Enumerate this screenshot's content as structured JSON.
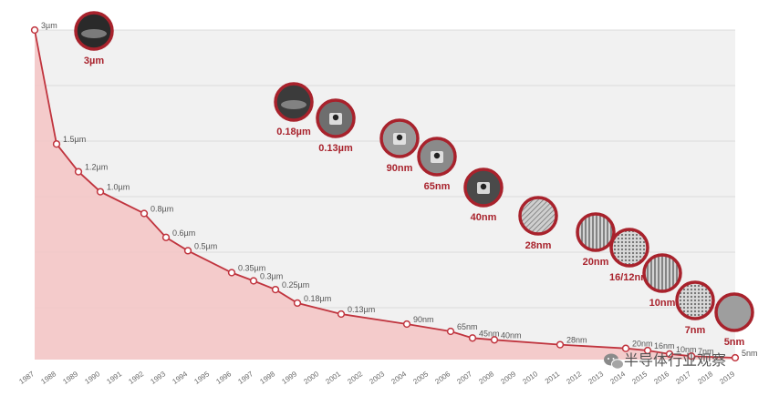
{
  "chart_data": {
    "type": "area",
    "title": "",
    "xlabel": "",
    "ylabel": "",
    "x_ticks": [
      "1987",
      "1988",
      "1989",
      "1990",
      "1991",
      "1992",
      "1993",
      "1994",
      "1995",
      "1996",
      "1997",
      "1998",
      "1999",
      "2000",
      "2001",
      "2002",
      "2003",
      "2004",
      "2005",
      "2006",
      "2007",
      "2008",
      "2009",
      "2010",
      "2011",
      "2012",
      "2013",
      "2014",
      "2015",
      "2016",
      "2017",
      "2018",
      "2019"
    ],
    "series": [
      {
        "points": [
          {
            "year": 1987,
            "value_nm": 3000,
            "label": "3µm"
          },
          {
            "year": 1988,
            "value_nm": 1500,
            "label": "1.5µm"
          },
          {
            "year": 1989,
            "value_nm": 1200,
            "label": "1.2µm"
          },
          {
            "year": 1990,
            "value_nm": 1000,
            "label": "1.0µm"
          },
          {
            "year": 1992,
            "value_nm": 800,
            "label": "0.8µm"
          },
          {
            "year": 1993,
            "value_nm": 600,
            "label": "0.6µm"
          },
          {
            "year": 1994,
            "value_nm": 500,
            "label": "0.5µm"
          },
          {
            "year": 1996,
            "value_nm": 350,
            "label": "0.35µm"
          },
          {
            "year": 1997,
            "value_nm": 300,
            "label": "0.3µm"
          },
          {
            "year": 1998,
            "value_nm": 250,
            "label": "0.25µm"
          },
          {
            "year": 1999,
            "value_nm": 180,
            "label": "0.18µm"
          },
          {
            "year": 2001,
            "value_nm": 130,
            "label": "0.13µm"
          },
          {
            "year": 2004,
            "value_nm": 90,
            "label": "90nm"
          },
          {
            "year": 2006,
            "value_nm": 65,
            "label": "65nm"
          },
          {
            "year": 2007,
            "value_nm": 45,
            "label": "45nm"
          },
          {
            "year": 2008,
            "value_nm": 40,
            "label": "40nm"
          },
          {
            "year": 2011,
            "value_nm": 28,
            "label": "28nm"
          },
          {
            "year": 2014,
            "value_nm": 20,
            "label": "20nm"
          },
          {
            "year": 2015,
            "value_nm": 16,
            "label": "16nm"
          },
          {
            "year": 2016,
            "value_nm": 10,
            "label": "10nm"
          },
          {
            "year": 2017,
            "value_nm": 7,
            "label": "7nm"
          },
          {
            "year": 2019,
            "value_nm": 5,
            "label": "5nm"
          }
        ]
      }
    ],
    "nodes": [
      {
        "label": "3µm",
        "icon": "chip-cross-section-icon"
      },
      {
        "label": "0.18µm",
        "icon": "chip-cross-section-icon"
      },
      {
        "label": "0.13µm",
        "icon": "chip-cross-section-icon"
      },
      {
        "label": "90nm",
        "icon": "chip-cross-section-icon"
      },
      {
        "label": "65nm",
        "icon": "chip-cross-section-icon"
      },
      {
        "label": "40nm",
        "icon": "chip-cross-section-icon"
      },
      {
        "label": "28nm",
        "icon": "chip-cross-section-icon"
      },
      {
        "label": "20nm",
        "icon": "chip-cross-section-icon"
      },
      {
        "label": "16/12nm",
        "icon": "chip-cross-section-icon"
      },
      {
        "label": "10nm",
        "icon": "chip-cross-section-icon"
      },
      {
        "label": "7nm",
        "icon": "chip-cross-section-icon"
      },
      {
        "label": "5nm",
        "icon": "chip-cross-section-icon"
      }
    ],
    "grid": true,
    "colors": {
      "line": "#c0343e",
      "fill": "#f4c4c4",
      "accent": "#a8222c",
      "plot_bg": "#f1f1f1"
    }
  },
  "watermark": {
    "text": "半导体行业观察",
    "icon": "wechat-icon"
  }
}
